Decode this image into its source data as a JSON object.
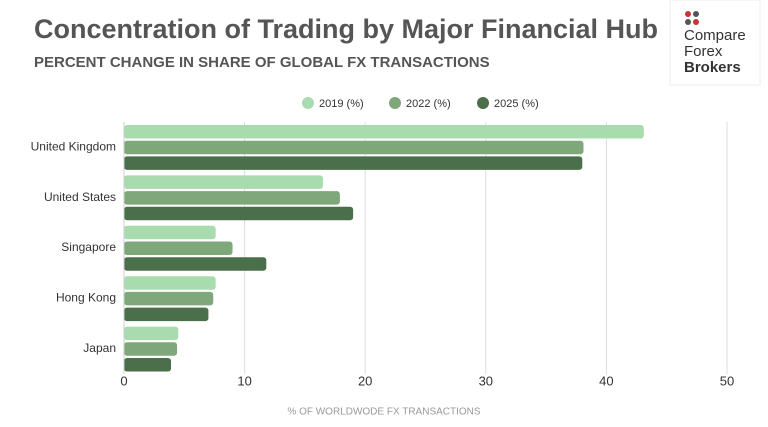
{
  "chart_data": {
    "type": "barh",
    "title": "Concentration of Trading by Major Financial Hub",
    "subtitle": "PERCENT CHANGE IN SHARE OF GLOBAL FX TRANSACTIONS",
    "logo": [
      "Compare",
      "Forex",
      "Brokers"
    ],
    "x_label": "% OF WORLDWODE FX TRANSACTIONS",
    "categories": [
      "United Kingdom",
      "United States",
      "Singapore",
      "Hong Kong",
      "Japan"
    ],
    "series": [
      {
        "name": "2019 (%)",
        "color": "#a8dcae",
        "values": [
          43.1,
          16.5,
          7.6,
          7.6,
          4.5
        ]
      },
      {
        "name": "2022 (%)",
        "color": "#7ea87a",
        "values": [
          38.1,
          17.9,
          9.0,
          7.4,
          4.4
        ]
      },
      {
        "name": "2025 (%)",
        "color": "#4a6f4a",
        "values": [
          38.0,
          19.0,
          11.8,
          7.0,
          3.9
        ]
      }
    ],
    "xlim": [
      0,
      50
    ],
    "xticks": [
      0,
      10,
      20,
      30,
      40,
      50
    ],
    "grid": true
  }
}
